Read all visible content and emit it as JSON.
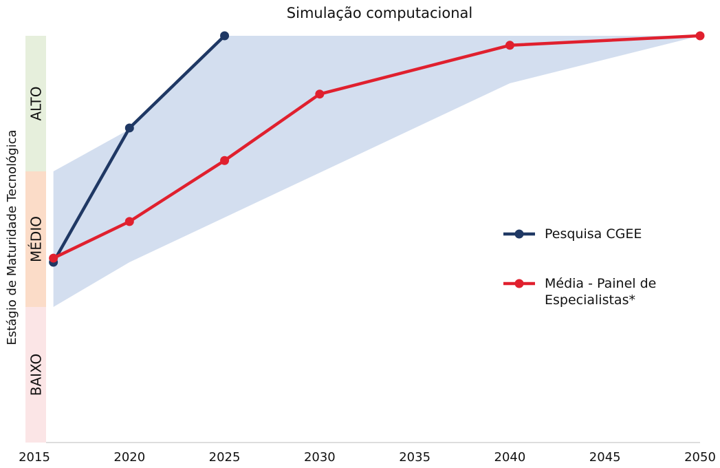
{
  "chart_data": {
    "type": "line",
    "title": "Simulação computacional",
    "ylabel": "Estágio de Maturidade Tecnológica",
    "xlim": [
      2015,
      2050
    ],
    "xticks": [
      2015,
      2020,
      2025,
      2030,
      2035,
      2040,
      2045,
      2050
    ],
    "ylim": [
      0,
      3
    ],
    "ybands": [
      {
        "label": "BAIXO",
        "from": 0,
        "to": 1,
        "color": "#fbe5e6"
      },
      {
        "label": "MÉDIO",
        "from": 1,
        "to": 2,
        "color": "#fbdcc8"
      },
      {
        "label": "ALTO",
        "from": 2,
        "to": 3,
        "color": "#e6efdc"
      }
    ],
    "band": {
      "color": "#d3deef",
      "x": [
        2016,
        2020,
        2025,
        2040,
        2050
      ],
      "lower": [
        1.0,
        1.33,
        1.66,
        2.65,
        3.0
      ],
      "upper": [
        2.0,
        2.31,
        3.0,
        3.0,
        3.0
      ]
    },
    "series": [
      {
        "name": "Pesquisa CGEE",
        "color": "#1f3864",
        "x": [
          2016,
          2020,
          2025
        ],
        "values": [
          1.33,
          2.32,
          3.0
        ]
      },
      {
        "name": "Média - Painel de Especialistas*",
        "color": "#e0202e",
        "x": [
          2016,
          2020,
          2025,
          2030,
          2040,
          2050
        ],
        "values": [
          1.36,
          1.63,
          2.08,
          2.57,
          2.93,
          3.0
        ]
      }
    ],
    "legend": "right"
  }
}
